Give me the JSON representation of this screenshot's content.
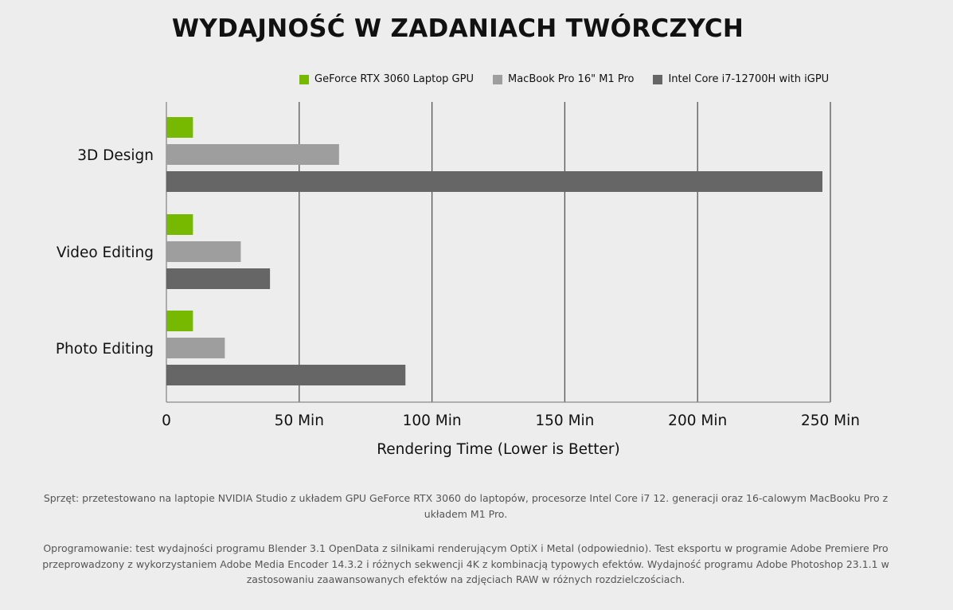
{
  "title": "WYDAJNOŚĆ W ZADANIACH TWÓRCZYCH",
  "colors": {
    "series": [
      "#76b900",
      "#9e9e9e",
      "#666666"
    ],
    "axis": "#8a8a8a",
    "gridline": "#555555",
    "background": "#ededed"
  },
  "chart_data": {
    "type": "bar",
    "orientation": "horizontal",
    "categories": [
      "3D Design",
      "Video Editing",
      "Photo Editing"
    ],
    "series": [
      {
        "name": "GeForce RTX 3060 Laptop GPU",
        "values": [
          10,
          10,
          10
        ]
      },
      {
        "name": "MacBook Pro 16\" M1 Pro",
        "values": [
          65,
          28,
          22
        ]
      },
      {
        "name": "Intel Core i7-12700H with iGPU",
        "values": [
          247,
          39,
          90
        ]
      }
    ],
    "xlabel": "Rendering Time (Lower is Better)",
    "ylabel": "",
    "xlim": [
      0,
      250
    ],
    "ticks": [
      0,
      50,
      100,
      150,
      200,
      250
    ],
    "tick_labels": [
      "0",
      "50 Min",
      "100 Min",
      "150 Min",
      "200 Min",
      "250 Min"
    ],
    "grid": true,
    "legend": "top"
  },
  "footnotes": {
    "hardware": "Sprzęt: przetestowano na laptopie NVIDIA Studio z układem GPU GeForce RTX 3060 do laptopów, procesorze Intel Core i7 12. generacji oraz 16-calowym MacBooku Pro z układem M1 Pro.",
    "software": "Oprogramowanie: test wydajności programu Blender 3.1 OpenData z silnikami renderującym OptiX i Metal (odpowiednio). Test eksportu w programie Adobe Premiere Pro przeprowadzony z wykorzystaniem Adobe Media Encoder 14.3.2 i różnych sekwencji 4K z kombinacją typowych efektów. Wydajność programu Adobe Photoshop 23.1.1 w zastosowaniu zaawansowanych efektów na zdjęciach RAW w różnych rozdzielczościach."
  }
}
